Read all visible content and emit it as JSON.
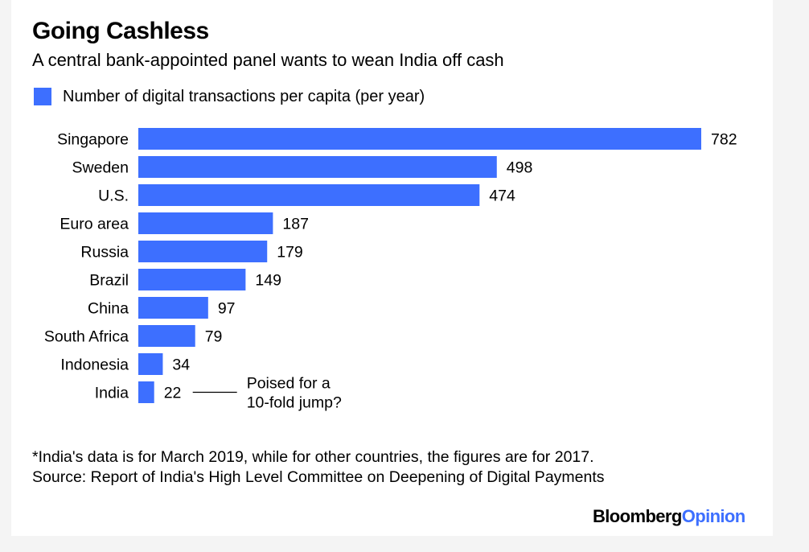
{
  "header": {
    "title": "Going Cashless",
    "subtitle": "A central bank-appointed panel wants to wean India off cash"
  },
  "legend": {
    "label": "Number of digital transactions per capita (per year)",
    "color": "#3d6fff"
  },
  "chart_data": {
    "type": "bar",
    "orientation": "horizontal",
    "title": "Going Cashless",
    "subtitle": "A central bank-appointed panel wants to wean India off cash",
    "xlabel": "",
    "ylabel": "",
    "xlim": [
      0,
      782
    ],
    "grid": false,
    "legend_position": "top-left",
    "categories": [
      "Singapore",
      "Sweden",
      "U.S.",
      "Euro area",
      "Russia",
      "Brazil",
      "China",
      "South Africa",
      "Indonesia",
      "India"
    ],
    "series": [
      {
        "name": "Number of digital transactions per capita (per year)",
        "color": "#3d6fff",
        "values": [
          782,
          498,
          474,
          187,
          179,
          149,
          97,
          79,
          34,
          22
        ]
      }
    ],
    "annotations": [
      {
        "category": "India",
        "text_lines": [
          "Poised for a",
          "10-fold jump?"
        ]
      }
    ]
  },
  "footer": {
    "note": "*India's data is for March 2019, while for other countries, the figures are for 2017.",
    "source": "Source: Report of India's High Level Committee on Deepening of Digital Payments"
  },
  "brand": {
    "part1": "Bloomberg",
    "part2": "Opinion",
    "part2_color": "#3d6fff"
  }
}
